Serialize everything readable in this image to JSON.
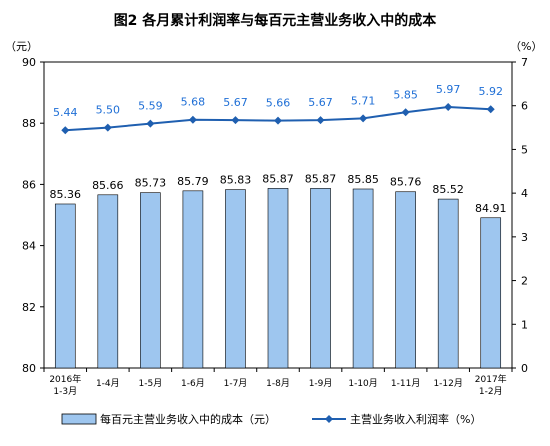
{
  "chart_data": {
    "type": "bar",
    "title": "图2  各月累计利润率与每百元主营业务收入中的成本",
    "left_unit": "（元）",
    "right_unit": "（%）",
    "categories": [
      [
        "2016年",
        "1-3月"
      ],
      [
        "1-4月"
      ],
      [
        "1-5月"
      ],
      [
        "1-6月"
      ],
      [
        "1-7月"
      ],
      [
        "1-8月"
      ],
      [
        "1-9月"
      ],
      [
        "1-10月"
      ],
      [
        "1-11月"
      ],
      [
        "1-12月"
      ],
      [
        "2017年",
        "1-2月"
      ]
    ],
    "series": [
      {
        "name": "每百元主营业务收入中的成本（元）",
        "kind": "bar",
        "axis": "left",
        "color": "#9ec6ef",
        "values": [
          85.36,
          85.66,
          85.73,
          85.79,
          85.83,
          85.87,
          85.87,
          85.85,
          85.76,
          85.52,
          84.91
        ],
        "labels": [
          "85.36",
          "85.66",
          "85.73",
          "85.79",
          "85.83",
          "85.87",
          "85.87",
          "85.85",
          "85.76",
          "85.52",
          "84.91"
        ]
      },
      {
        "name": "主营业务收入利润率（%）",
        "kind": "line",
        "axis": "right",
        "color": "#1f5fb0",
        "label_color": "#1f6fd6",
        "values": [
          5.44,
          5.5,
          5.59,
          5.68,
          5.67,
          5.66,
          5.67,
          5.71,
          5.85,
          5.97,
          5.92
        ],
        "labels": [
          "5.44",
          "5.50",
          "5.59",
          "5.68",
          "5.67",
          "5.66",
          "5.67",
          "5.71",
          "5.85",
          "5.97",
          "5.92"
        ]
      }
    ],
    "ylim_left": [
      80,
      90
    ],
    "yticks_left": [
      "80",
      "82",
      "84",
      "86",
      "88",
      "90"
    ],
    "ylim_right": [
      0,
      7
    ],
    "yticks_right": [
      "0",
      "1",
      "2",
      "3",
      "4",
      "5",
      "6",
      "7"
    ],
    "grid": false,
    "legend": "bottom"
  }
}
